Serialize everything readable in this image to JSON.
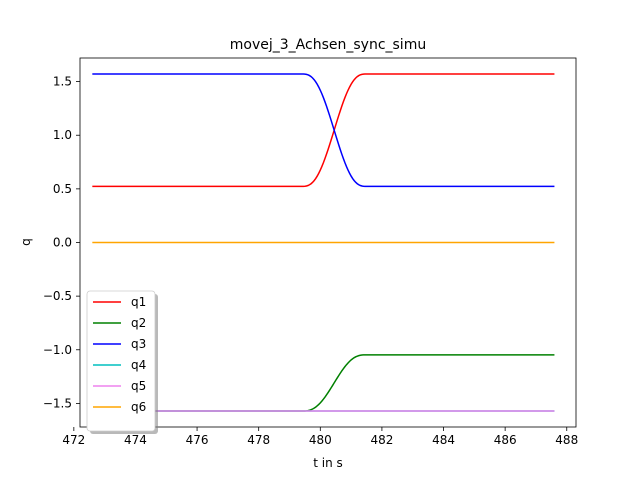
{
  "chart_data": {
    "type": "line",
    "title": "movej_3_Achsen_sync_simu",
    "xlabel": "t in s",
    "ylabel": "q",
    "xlim": [
      472.2,
      488.3
    ],
    "ylim": [
      -1.72,
      1.72
    ],
    "xticks": [
      472,
      474,
      476,
      478,
      480,
      482,
      484,
      486,
      488
    ],
    "xtick_labels": [
      "472",
      "474",
      "476",
      "478",
      "480",
      "482",
      "484",
      "486",
      "488"
    ],
    "yticks": [
      1.5,
      1.0,
      0.5,
      0.0,
      -0.5,
      -1.0,
      -1.5
    ],
    "ytick_labels": [
      "1.5",
      "1.0",
      "0.5",
      "0.0",
      "−0.5",
      "−1.0",
      "−1.5"
    ],
    "grid": false,
    "legend_position": "lower-left",
    "series": [
      {
        "name": "q1",
        "color": "#ff0000",
        "t_start": 472.6,
        "t_move_start": 479.4,
        "t_move_end": 481.5,
        "t_end": 487.6,
        "q_start": 0.5236,
        "q_end": 1.5708
      },
      {
        "name": "q2",
        "color": "#008000",
        "t_start": 472.6,
        "t_move_start": 479.4,
        "t_move_end": 481.5,
        "t_end": 487.6,
        "q_start": -1.5708,
        "q_end": -1.0472
      },
      {
        "name": "q3",
        "color": "#0000ff",
        "t_start": 472.6,
        "t_move_start": 479.4,
        "t_move_end": 481.5,
        "t_end": 487.6,
        "q_start": 1.5708,
        "q_end": 0.5236
      },
      {
        "name": "q4",
        "color": "#00bfbf",
        "t_start": 472.6,
        "t_move_start": 479.4,
        "t_move_end": 481.5,
        "t_end": 487.6,
        "q_start": -1.5708,
        "q_end": -1.5708
      },
      {
        "name": "q5",
        "color": "#ee82ee",
        "t_start": 472.6,
        "t_move_start": 479.4,
        "t_move_end": 481.5,
        "t_end": 487.6,
        "q_start": -1.5708,
        "q_end": -1.5708
      },
      {
        "name": "q6",
        "color": "#ffa500",
        "t_start": 472.6,
        "t_move_start": 479.4,
        "t_move_end": 481.5,
        "t_end": 487.6,
        "q_start": 0.0,
        "q_end": 0.0
      }
    ]
  }
}
